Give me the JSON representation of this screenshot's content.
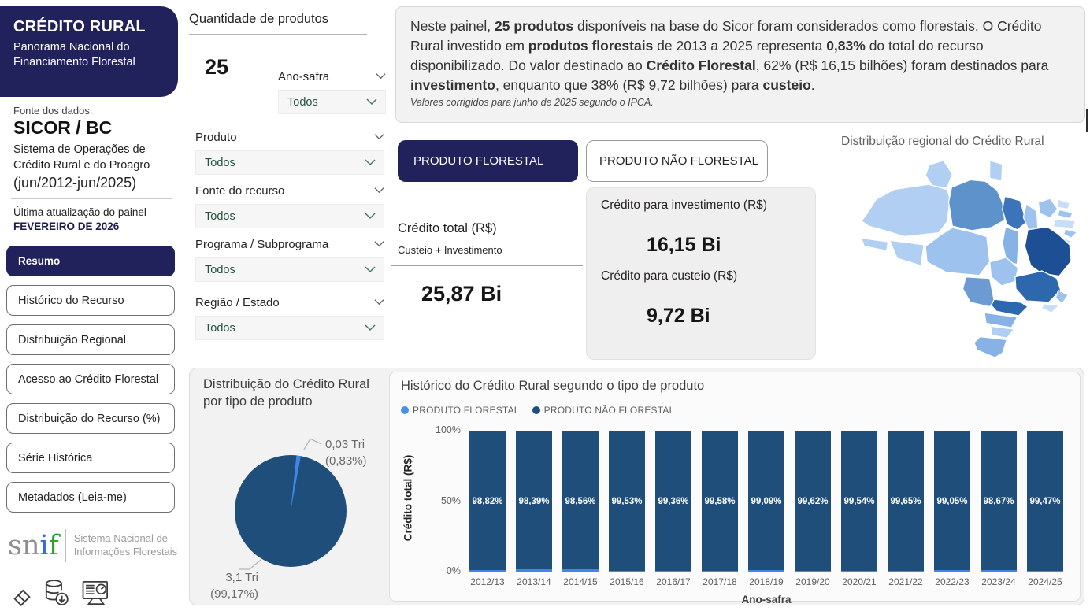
{
  "sidebar": {
    "title": "CRÉDITO RURAL",
    "subtitle": "Panorama Nacional do Financiamento Florestal",
    "source_label": "Fonte dos dados:",
    "source_name": "SICOR / BC",
    "source_desc": "Sistema de Operações de Crédito Rural e do Proagro",
    "source_period": "(jun/2012-jun/2025)",
    "updated_label": "Última atualização do painel",
    "updated_value": "FEVEREIRO DE 2026",
    "nav": [
      {
        "label": "Resumo",
        "active": true
      },
      {
        "label": "Histórico do Recurso",
        "active": false
      },
      {
        "label": "Distribuição Regional",
        "active": false
      },
      {
        "label": "Acesso ao Crédito Florestal",
        "active": false
      },
      {
        "label": "Distribuição do Recurso (%)",
        "active": false
      },
      {
        "label": "Série Histórica",
        "active": false
      },
      {
        "label": "Metadados (Leia-me)",
        "active": false
      }
    ],
    "logo": {
      "part_sn": "sn",
      "part_i": "i",
      "part_f": "f",
      "org_line1": "Sistema Nacional de",
      "org_line2": "Informações Florestais"
    },
    "footer_icons": [
      "eraser-icon",
      "database-download-icon",
      "monitor-dashboard-icon"
    ]
  },
  "filters": {
    "count_title": "Quantidade de produtos",
    "count_value": "25",
    "slicers": [
      {
        "label": "Ano-safra",
        "value": "Todos"
      },
      {
        "label": "Produto",
        "value": "Todos"
      },
      {
        "label": "Fonte do recurso",
        "value": "Todos"
      },
      {
        "label": "Programa / Subprograma",
        "value": "Todos"
      },
      {
        "label": "Região / Estado",
        "value": "Todos"
      }
    ]
  },
  "summary": {
    "segments": [
      {
        "t": "Neste painel, "
      },
      {
        "t": "25 produtos",
        "b": true
      },
      {
        "t": " disponíveis na base do Sicor foram considerados como florestais. O Crédito Rural investido em "
      },
      {
        "t": "produtos florestais",
        "b": true
      },
      {
        "t": " de 2013 a 2025 representa "
      },
      {
        "t": "0,83%",
        "b": true
      },
      {
        "t": " do total do recurso disponibilizado. Do valor destinado ao "
      },
      {
        "t": "Crédito Florestal",
        "b": true
      },
      {
        "t": ", 62% (R$ 16,15 bilhões) foram destinados para "
      },
      {
        "t": "investimento",
        "b": true
      },
      {
        "t": ", enquanto que 38% (R$ 9,72 bilhões) para "
      },
      {
        "t": "custeio",
        "b": true
      },
      {
        "t": "."
      }
    ],
    "note": "Valores corrigidos para junho de 2025 segundo o IPCA."
  },
  "tabs": {
    "active": "PRODUTO FLORESTAL",
    "inactive": "PRODUTO NÃO FLORESTAL"
  },
  "kpi": {
    "total_label": "Crédito total (R$)",
    "total_sub": "Custeio + Investimento",
    "total_value": "25,87 Bi",
    "invest_label": "Crédito para investimento (R$)",
    "invest_value": "16,15 Bi",
    "custeio_label": "Crédito para custeio (R$)",
    "custeio_value": "9,72 Bi"
  },
  "map": {
    "title": "Distribuição regional do Crédito Rural",
    "shades": {
      "s1": "#c7ddf8",
      "s2": "#b0cff3",
      "s3": "#9dc2ee",
      "s4": "#87b2e5",
      "s5": "#6b9bd2",
      "s6": "#5e92cb",
      "s7": "#3b74ba",
      "s8": "#2d68ae",
      "s9": "#1d4f94"
    },
    "regions": {
      "RR": "s2",
      "AP": "s2",
      "AM": "s2",
      "PA": "s6",
      "MA": "s7",
      "PI": "s3",
      "CE": "s3",
      "RN": "s1",
      "PB": "s3",
      "PE": "s1",
      "AL": "s3",
      "SE": "s1",
      "BA": "s9",
      "TO": "s4",
      "AC": "s2",
      "RO": "s2",
      "MT": "s3",
      "GO": "s3",
      "MG": "s8",
      "ES": "s3",
      "RJ": "s1",
      "MS": "s5",
      "SP": "s8",
      "PR": "s4",
      "SC": "s2",
      "RS": "s4"
    }
  },
  "colors": {
    "navy": "#21215c",
    "bar_navy": "#1f4e7a",
    "accent_blue": "#3f86e8",
    "legend_blue": "#4a90e8",
    "slicer_green": "#255441"
  },
  "chart_data": [
    {
      "type": "pie",
      "title": "Distribuição do Crédito Rural por tipo de produto",
      "slices": [
        {
          "name": "PRODUTO NÃO FLORESTAL",
          "value": 99.17,
          "display": "3,1 Tri",
          "pct_display": "(99,17%)",
          "color": "#1f4e7a"
        },
        {
          "name": "PRODUTO FLORESTAL",
          "value": 0.83,
          "display": "0,03 Tri",
          "pct_display": "(0,83%)",
          "color": "#3f86e8"
        }
      ],
      "legend_position": "none"
    },
    {
      "type": "bar",
      "stacked": true,
      "title": "Histórico do Crédito Rural segundo o tipo de produto",
      "xlabel": "Ano-safra",
      "ylabel": "Crédito total (R$)",
      "ylim": [
        0,
        100
      ],
      "yticks": [
        "100%",
        "50%",
        "0%"
      ],
      "grid": true,
      "legend": [
        "PRODUTO FLORESTAL",
        "PRODUTO NÃO FLORESTAL"
      ],
      "legend_colors": [
        "#4a90e8",
        "#1f4e7a"
      ],
      "categories": [
        "2012/13",
        "2013/14",
        "2014/15",
        "2015/16",
        "2016/17",
        "2017/18",
        "2018/19",
        "2019/20",
        "2020/21",
        "2021/22",
        "2022/23",
        "2023/24",
        "2024/25"
      ],
      "series": [
        {
          "name": "PRODUTO NÃO FLORESTAL",
          "values": [
            98.82,
            98.39,
            98.56,
            99.53,
            99.36,
            99.58,
            99.09,
            99.62,
            99.54,
            99.65,
            99.05,
            98.67,
            99.47
          ],
          "labels": [
            "98,82%",
            "98,39%",
            "98,56%",
            "99,53%",
            "99,36%",
            "99,58%",
            "99,09%",
            "99,62%",
            "99,54%",
            "99,65%",
            "99,05%",
            "98,67%",
            "99,47%"
          ]
        },
        {
          "name": "PRODUTO FLORESTAL",
          "values": [
            1.18,
            1.61,
            1.44,
            0.47,
            0.64,
            0.42,
            0.91,
            0.38,
            0.46,
            0.35,
            0.95,
            1.33,
            0.53
          ]
        }
      ]
    }
  ]
}
